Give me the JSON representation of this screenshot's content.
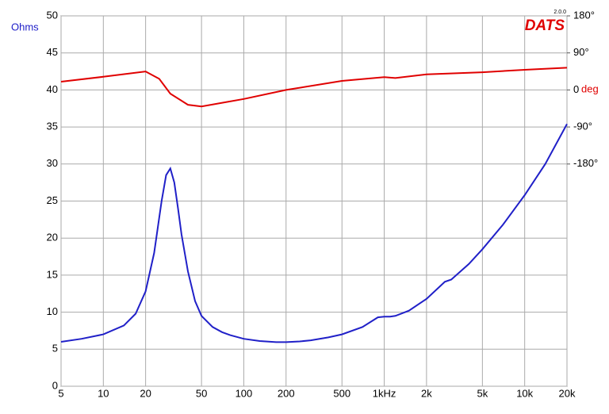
{
  "chart_data": {
    "type": "line",
    "logo": "DATS",
    "version": "2.0.0",
    "ylabel": "Ohms",
    "y2label": "deg",
    "log_x": true,
    "grid": true,
    "xlim": [
      5,
      20000
    ],
    "xticks": [
      5,
      10,
      20,
      50,
      100,
      200,
      500,
      {
        "value": 1000,
        "label": "1kHz"
      },
      {
        "value": 2000,
        "label": "2k"
      },
      {
        "value": 5000,
        "label": "5k"
      },
      {
        "value": 10000,
        "label": "10k"
      },
      {
        "value": 20000,
        "label": "20k"
      }
    ],
    "ylim": [
      0,
      50
    ],
    "yticks": [
      0,
      5,
      10,
      15,
      20,
      25,
      30,
      35,
      40,
      45,
      50
    ],
    "y2lim": [
      -720,
      180
    ],
    "y2ticks": [
      {
        "value": 180,
        "label": "180°"
      },
      {
        "value": 90,
        "label": "90°"
      },
      0,
      {
        "value": -90,
        "label": "-90°"
      },
      {
        "value": -180,
        "label": "-180°"
      }
    ],
    "series": [
      {
        "color": "#2020c8",
        "x": [
          5,
          7,
          10,
          14,
          17,
          20,
          23,
          26,
          28,
          30,
          32,
          34,
          36,
          40,
          45,
          50,
          60,
          70,
          80,
          100,
          130,
          170,
          200,
          250,
          300,
          400,
          500,
          700,
          900,
          1000,
          1100,
          1200,
          1500,
          2000,
          2500,
          2700,
          3000,
          4000,
          5000,
          7000,
          10000,
          14000,
          20000
        ],
        "values": [
          6.0,
          6.4,
          7.0,
          8.2,
          9.8,
          12.8,
          18,
          25,
          28.5,
          29.4,
          27.5,
          24,
          20.5,
          15.5,
          11.5,
          9.5,
          8.0,
          7.3,
          6.9,
          6.4,
          6.1,
          5.95,
          5.95,
          6.05,
          6.2,
          6.6,
          7.0,
          8.0,
          9.3,
          9.4,
          9.4,
          9.5,
          10.2,
          11.8,
          13.5,
          14.1,
          14.4,
          16.5,
          18.5,
          21.8,
          25.8,
          30.0,
          35.4
        ]
      },
      {
        "color": "#e00000",
        "axis": "y2",
        "x": [
          5,
          10,
          20,
          25,
          30,
          40,
          50,
          100,
          200,
          500,
          1000,
          1200,
          2000,
          5000,
          10000,
          20000
        ],
        "values": [
          20,
          32,
          45,
          27,
          -9,
          -36,
          -40,
          -22,
          0,
          22,
          31,
          29,
          38,
          43,
          49,
          54
        ]
      }
    ]
  }
}
